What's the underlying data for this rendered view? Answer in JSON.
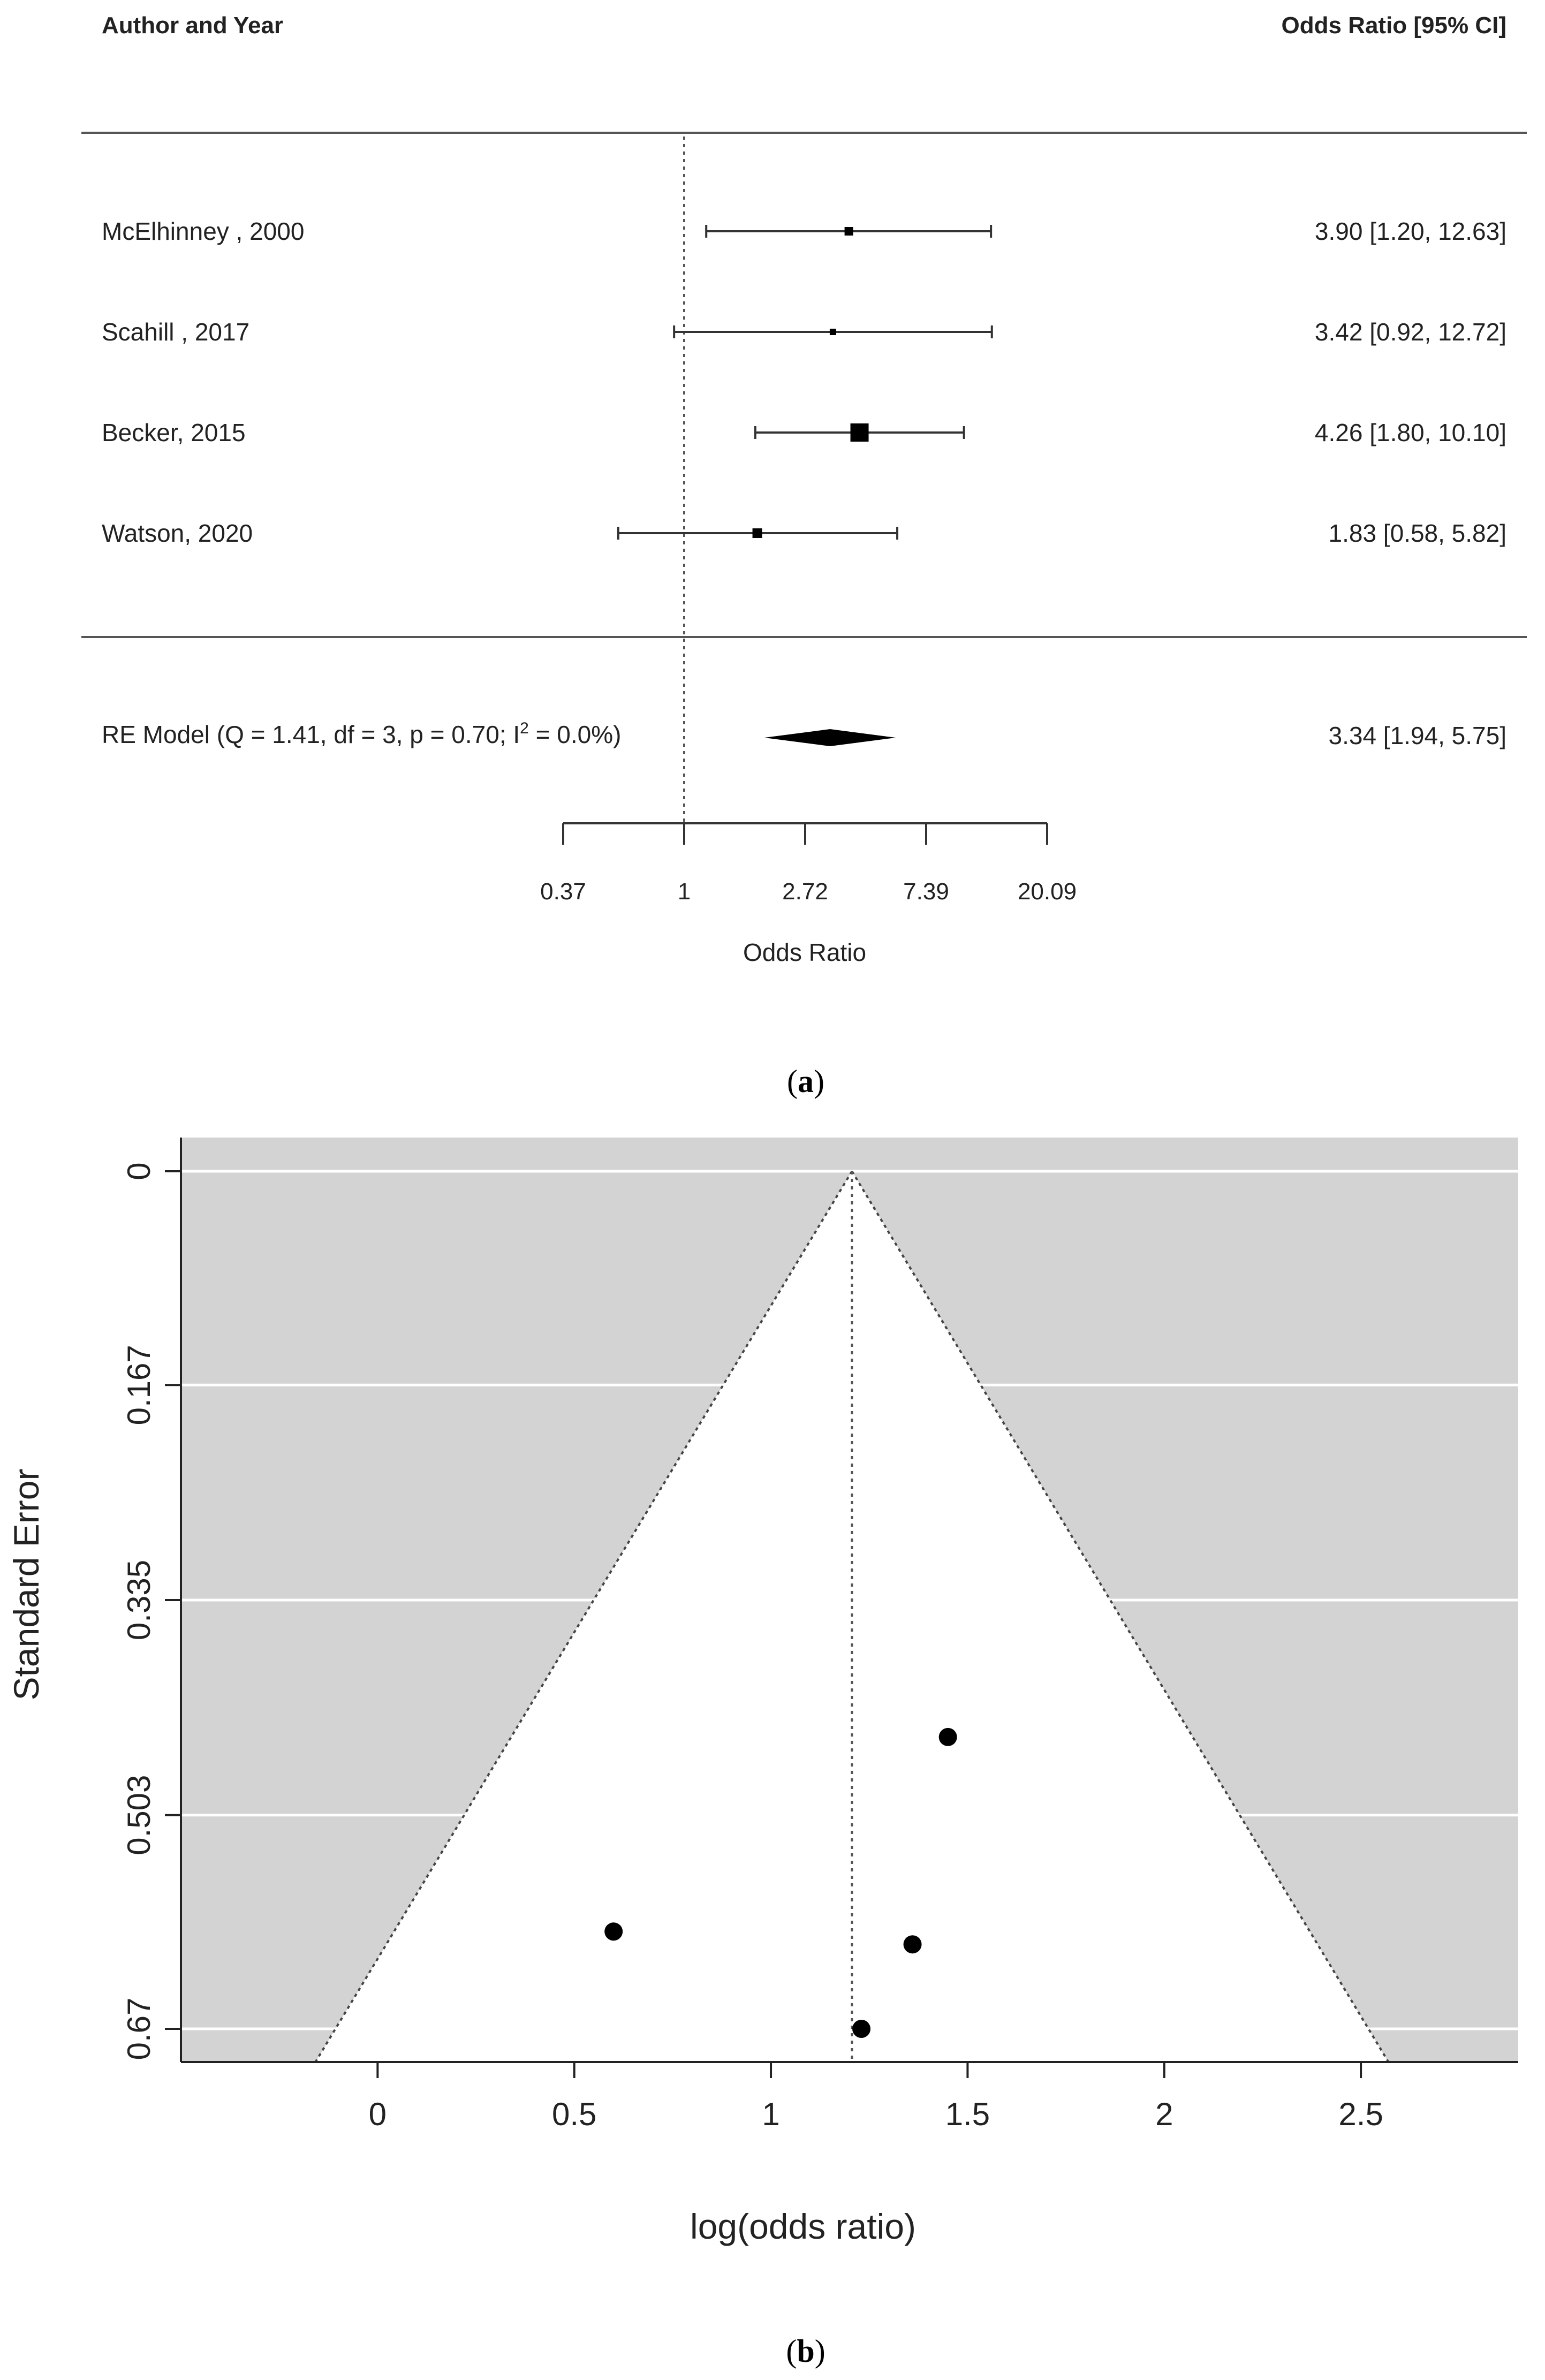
{
  "chart_data": [
    {
      "type": "forest",
      "panel_caption": "a",
      "header_left": "Author and Year",
      "header_right": "Odds Ratio [95% CI]",
      "xlabel": "Odds Ratio",
      "x_ticks": [
        "0.37",
        "1",
        "2.72",
        "7.39",
        "20.09"
      ],
      "x_tick_log_values": [
        -1,
        0,
        1,
        2,
        3
      ],
      "reference_line": 1,
      "studies": [
        {
          "label": "McElhinney , 2000",
          "or": 3.9,
          "lo": 1.2,
          "hi": 12.63,
          "text": "3.90 [1.20, 12.63]",
          "weight_rank": 2
        },
        {
          "label": "Scahill  , 2017",
          "or": 3.42,
          "lo": 0.92,
          "hi": 12.72,
          "text": "3.42 [0.92, 12.72]",
          "weight_rank": 1
        },
        {
          "label": "Becker, 2015",
          "or": 4.26,
          "lo": 1.8,
          "hi": 10.1,
          "text": "4.26 [1.80, 10.10]",
          "weight_rank": 4
        },
        {
          "label": "Watson, 2020",
          "or": 1.83,
          "lo": 0.58,
          "hi": 5.82,
          "text": "1.83 [0.58,  5.82]",
          "weight_rank": 3
        }
      ],
      "summary": {
        "label_pre": "RE Model (Q = 1.41, df = 3, p = 0.70; I",
        "label_sup": "2",
        "label_post": " = 0.0%)",
        "or": 3.34,
        "lo": 1.94,
        "hi": 5.75,
        "text": "3.34 [1.94,  5.75]"
      }
    },
    {
      "type": "scatter",
      "subtype": "funnel",
      "panel_caption": "b",
      "xlabel": "log(odds ratio)",
      "ylabel": "Standard Error",
      "xlim": [
        -0.5,
        2.9
      ],
      "ylim": [
        0,
        0.67
      ],
      "y_reversed": true,
      "x_ticks": [
        0,
        0.5,
        1,
        1.5,
        2,
        2.5
      ],
      "x_tick_labels": [
        "0",
        "0.5",
        "1",
        "1.5",
        "2",
        "2.5"
      ],
      "y_ticks": [
        0,
        0.167,
        0.335,
        0.503,
        0.67
      ],
      "y_tick_labels": [
        "0",
        "0.167",
        "0.335",
        "0.503",
        "0.67"
      ],
      "center_log_or": 1.206,
      "funnel_z": 1.96,
      "points": [
        {
          "x": 1.45,
          "se": 0.442
        },
        {
          "x": 0.6,
          "se": 0.594
        },
        {
          "x": 1.36,
          "se": 0.604
        },
        {
          "x": 1.23,
          "se": 0.67
        }
      ],
      "colors": {
        "background": "#d3d3d3",
        "funnel": "#ffffff",
        "grid": "#ffffff",
        "point": "#000000"
      }
    }
  ]
}
